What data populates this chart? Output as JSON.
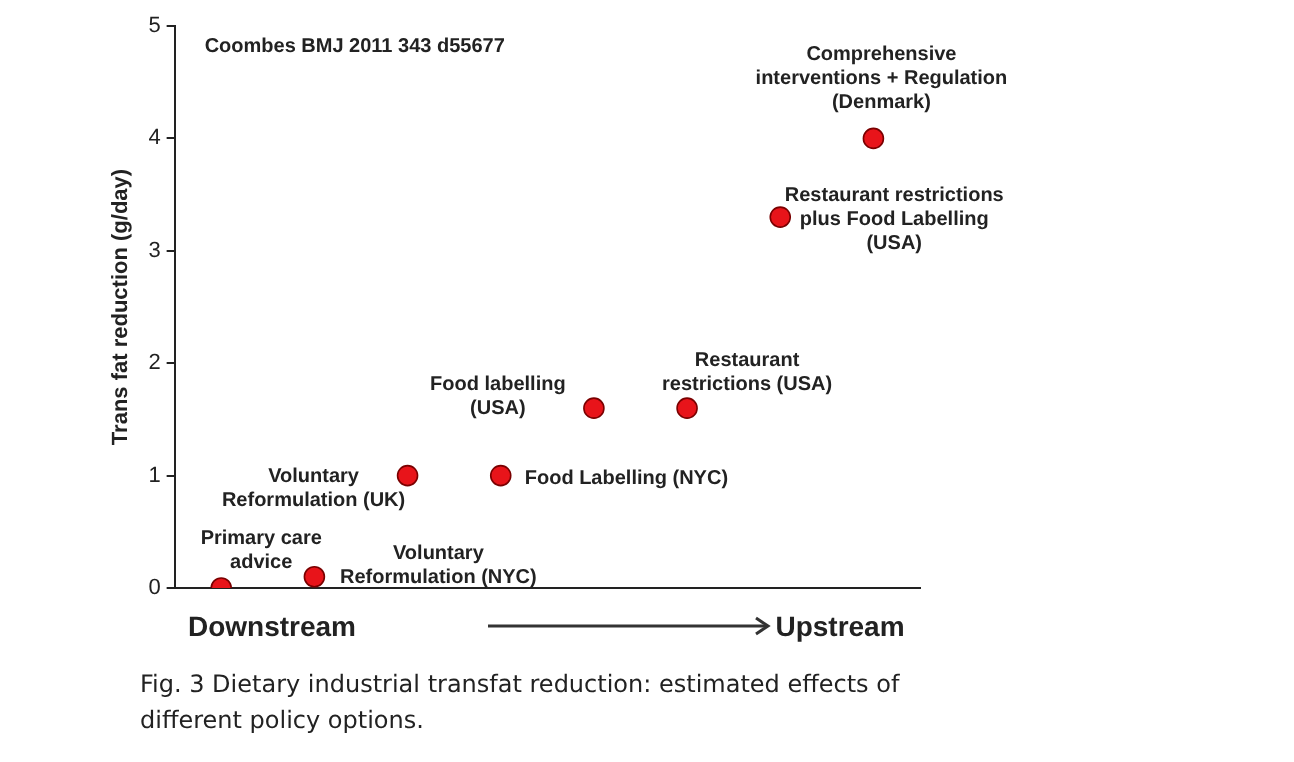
{
  "chart_data": {
    "type": "scatter",
    "ylabel": "Trans fat reduction (g/day)",
    "categories": [
      null,
      null,
      null,
      null,
      null,
      null,
      null,
      null
    ],
    "series": [
      {
        "color": "#e8141a",
        "values": [
          0,
          0.1,
          1.0,
          1.0,
          1.6,
          1.6,
          3.3,
          4.0
        ]
      }
    ],
    "ylim": [
      0,
      5
    ],
    "yticks": [
      0,
      1,
      2,
      3,
      4,
      5
    ],
    "grid": false,
    "legend": false,
    "marker": "circle",
    "tick_labels": "y",
    "annotations": [
      "Primary care\nadvice",
      "Voluntary\nReformulation (NYC)",
      "Voluntary\nReformulation (UK)",
      "Food Labelling (NYC)",
      "Food labelling\n(USA)",
      "Restaurant\nrestrictions (USA)",
      "Restaurant restrictions\nplus Food Labelling\n(USA)",
      "Comprehensive\ninterventions + Regulation\n(Denmark)",
      "Coombes BMJ 2011 343 d55677",
      "Downstream",
      "Upstream",
      "Fig. 3 Dietary industrial transfat reduction: estimated effects of different policy options."
    ]
  }
}
